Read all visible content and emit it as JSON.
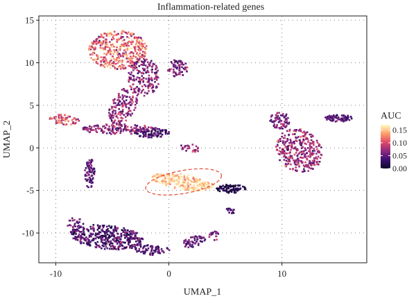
{
  "chart_data": {
    "type": "scatter",
    "title": "Inflammation-related genes",
    "xlabel": "UMAP_1",
    "ylabel": "UMAP_2",
    "xlim": [
      -11.5,
      17.5
    ],
    "ylim": [
      -13.5,
      15.5
    ],
    "x_ticks": [
      -10,
      0,
      10
    ],
    "y_ticks": [
      15,
      10,
      5,
      0,
      -5,
      -10
    ],
    "grid": "dotted",
    "legend": {
      "title": "AUC",
      "placement": "right",
      "min": 0.0,
      "max": 0.17,
      "ticks": [
        "0.15",
        "0.10",
        "0.05",
        "0.00"
      ],
      "tick_values": [
        0.15,
        0.1,
        0.05,
        0.0
      ],
      "colormap": [
        "#0d0729",
        "#3b0f70",
        "#8c2981",
        "#de4968",
        "#fe9f6d",
        "#fcfdbf"
      ]
    },
    "series": [
      {
        "cx": -4.5,
        "cy": 11.5,
        "rx": 2.6,
        "ry": 2.3,
        "angle": 0,
        "n": 420,
        "auc_mean": 0.115,
        "auc_sd": 0.03
      },
      {
        "cx": -2.2,
        "cy": 8.3,
        "rx": 1.4,
        "ry": 2.2,
        "angle": 0,
        "n": 180,
        "auc_mean": 0.065,
        "auc_sd": 0.02
      },
      {
        "cx": 0.8,
        "cy": 9.3,
        "rx": 0.9,
        "ry": 1.1,
        "angle": 0,
        "n": 60,
        "auc_mean": 0.06,
        "auc_sd": 0.018
      },
      {
        "cx": -4.0,
        "cy": 5.0,
        "rx": 1.1,
        "ry": 2.4,
        "angle": -20,
        "n": 150,
        "auc_mean": 0.07,
        "auc_sd": 0.02
      },
      {
        "cx": -9.2,
        "cy": 3.3,
        "rx": 1.4,
        "ry": 0.6,
        "angle": -10,
        "n": 60,
        "auc_mean": 0.1,
        "auc_sd": 0.025
      },
      {
        "cx": -4.5,
        "cy": 2.2,
        "rx": 3.2,
        "ry": 0.6,
        "angle": 0,
        "n": 150,
        "auc_mean": 0.07,
        "auc_sd": 0.02
      },
      {
        "cx": -1.5,
        "cy": 1.8,
        "rx": 1.6,
        "ry": 0.6,
        "angle": 0,
        "n": 90,
        "auc_mean": 0.04,
        "auc_sd": 0.015
      },
      {
        "cx": 1.8,
        "cy": 0.0,
        "rx": 0.9,
        "ry": 0.5,
        "angle": -20,
        "n": 25,
        "auc_mean": 0.08,
        "auc_sd": 0.02
      },
      {
        "cx": 1.3,
        "cy": -4.0,
        "rx": 2.8,
        "ry": 0.9,
        "angle": -12,
        "n": 230,
        "auc_mean": 0.15,
        "auc_sd": 0.015
      },
      {
        "cx": 5.5,
        "cy": -4.8,
        "rx": 1.3,
        "ry": 0.5,
        "angle": 0,
        "n": 80,
        "auc_mean": 0.015,
        "auc_sd": 0.01
      },
      {
        "cx": 5.5,
        "cy": -7.3,
        "rx": 0.4,
        "ry": 0.5,
        "angle": 0,
        "n": 14,
        "auc_mean": 0.04,
        "auc_sd": 0.015
      },
      {
        "cx": -7.0,
        "cy": -3.0,
        "rx": 0.45,
        "ry": 1.8,
        "angle": 0,
        "n": 70,
        "auc_mean": 0.045,
        "auc_sd": 0.015
      },
      {
        "cx": 11.5,
        "cy": -0.3,
        "rx": 2.0,
        "ry": 2.6,
        "angle": 15,
        "n": 330,
        "auc_mean": 0.075,
        "auc_sd": 0.022
      },
      {
        "cx": 9.8,
        "cy": 3.2,
        "rx": 0.9,
        "ry": 1.0,
        "angle": 0,
        "n": 70,
        "auc_mean": 0.065,
        "auc_sd": 0.02
      },
      {
        "cx": 15.0,
        "cy": 3.5,
        "rx": 1.2,
        "ry": 0.45,
        "angle": 0,
        "n": 70,
        "auc_mean": 0.045,
        "auc_sd": 0.015
      },
      {
        "cx": -5.5,
        "cy": -10.5,
        "rx": 3.3,
        "ry": 1.4,
        "angle": -8,
        "n": 420,
        "auc_mean": 0.04,
        "auc_sd": 0.02
      },
      {
        "cx": -1.5,
        "cy": -12.0,
        "rx": 1.6,
        "ry": 0.6,
        "angle": 0,
        "n": 70,
        "auc_mean": 0.045,
        "auc_sd": 0.015
      },
      {
        "cx": 2.2,
        "cy": -11.0,
        "rx": 1.1,
        "ry": 0.6,
        "angle": 25,
        "n": 55,
        "auc_mean": 0.05,
        "auc_sd": 0.015
      },
      {
        "cx": 4.0,
        "cy": -10.3,
        "rx": 0.5,
        "ry": 0.6,
        "angle": 0,
        "n": 18,
        "auc_mean": 0.06,
        "auc_sd": 0.015
      },
      {
        "cx": -8.3,
        "cy": -8.8,
        "rx": 0.8,
        "ry": 0.6,
        "angle": 0,
        "n": 22,
        "auc_mean": 0.05,
        "auc_sd": 0.015
      }
    ],
    "annotations": [
      {
        "type": "dashed-ellipse",
        "color": "#e0452e",
        "cx": 1.3,
        "cy": -4.0,
        "rx": 3.4,
        "ry": 1.35,
        "angle": -10
      }
    ]
  }
}
